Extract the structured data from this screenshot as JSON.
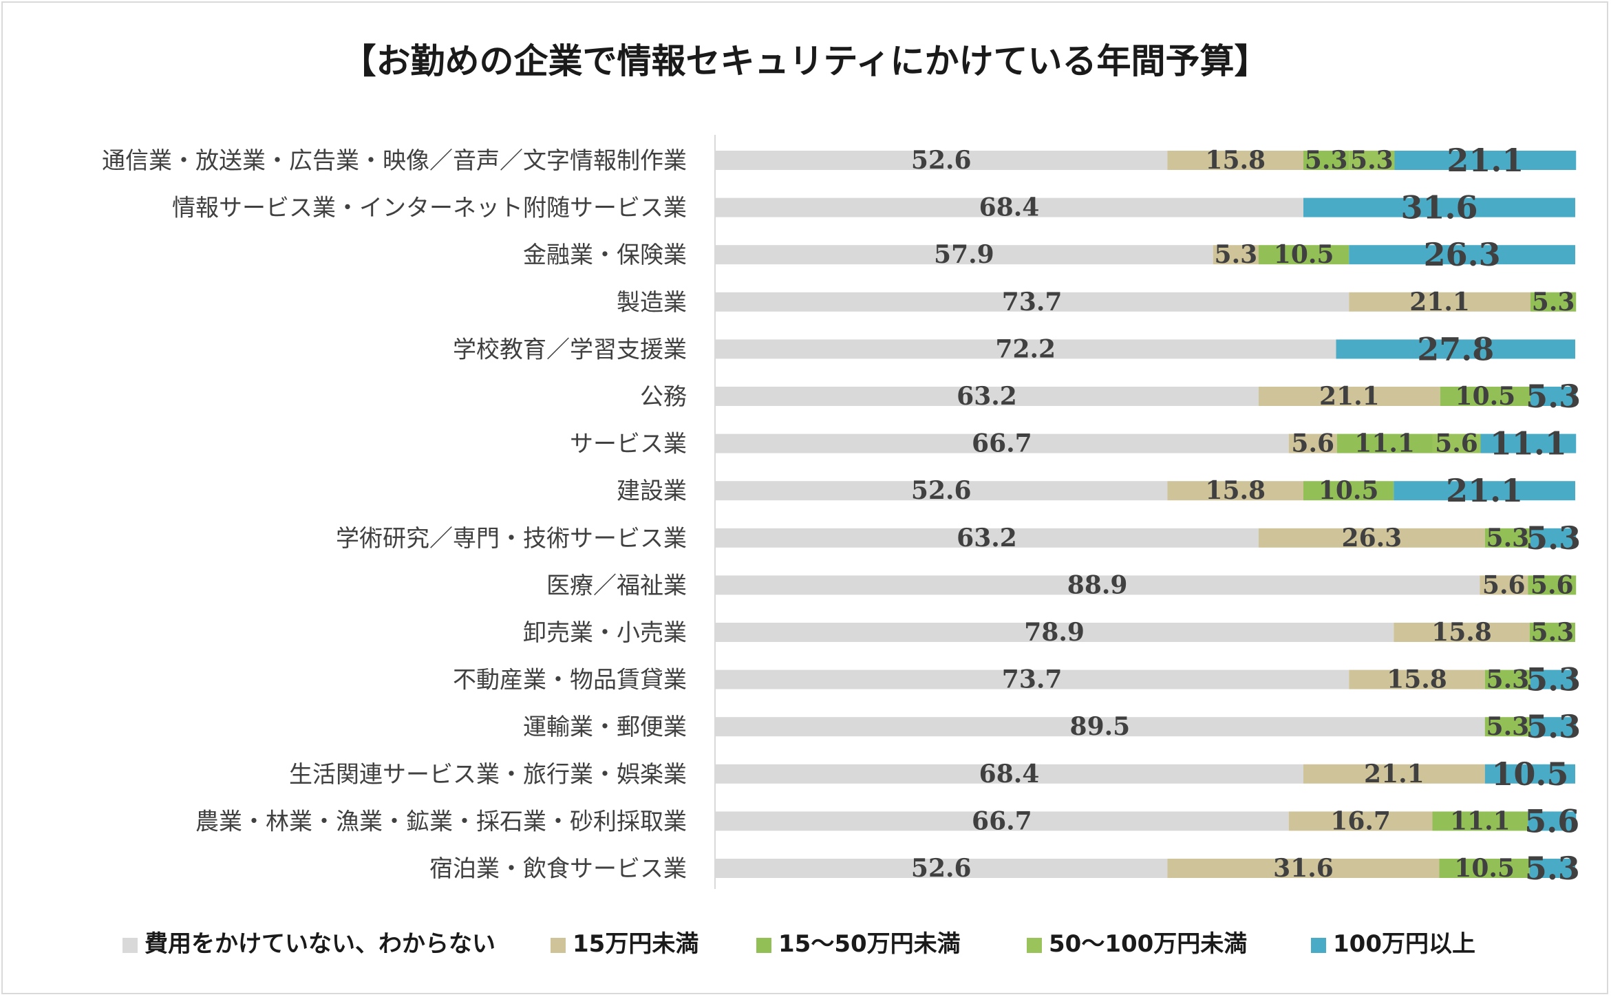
{
  "chart_data": {
    "type": "bar",
    "orientation": "horizontal",
    "stacked": "percent",
    "title": "【お勤めの企業で情報セキュリティにかけている年間予算】",
    "categories": [
      "通信業・放送業・広告業・映像／音声／文字情報制作業",
      "情報サービス業・インターネット附随サービス業",
      "金融業・保険業",
      "製造業",
      "学校教育／学習支援業",
      "公務",
      "サービス業",
      "建設業",
      "学術研究／専門・技術サービス業",
      "医療／福祉業",
      "卸売業・小売業",
      "不動産業・物品賃貸業",
      "運輸業・郵便業",
      "生活関連サービス業・旅行業・娯楽業",
      "農業・林業・漁業・鉱業・採石業・砂利採取業",
      "宿泊業・飲食サービス業"
    ],
    "series": [
      {
        "name": "費用をかけていない、わからない",
        "color": "#d9d9d9",
        "values": [
          52.6,
          68.4,
          57.9,
          73.7,
          72.2,
          63.2,
          66.7,
          52.6,
          63.2,
          88.9,
          78.9,
          73.7,
          89.5,
          68.4,
          66.7,
          52.6
        ]
      },
      {
        "name": "15万円未満",
        "color": "#cfc39a",
        "values": [
          15.8,
          0,
          5.3,
          21.1,
          0,
          21.1,
          5.6,
          15.8,
          26.3,
          5.6,
          15.8,
          15.8,
          0,
          21.1,
          16.7,
          31.6
        ]
      },
      {
        "name": "15～50万円未満",
        "color": "#92c056",
        "values": [
          5.3,
          0,
          10.5,
          5.3,
          0,
          10.5,
          11.1,
          10.5,
          5.3,
          5.6,
          5.3,
          5.3,
          5.3,
          0,
          11.1,
          10.5
        ]
      },
      {
        "name": "50～100万円未満",
        "color": "#9ac35c",
        "values": [
          5.3,
          0,
          0,
          0,
          0,
          0,
          5.6,
          0,
          0,
          0,
          0,
          0,
          0,
          0,
          0,
          0
        ]
      },
      {
        "name": "100万円以上",
        "color": "#4aabc6",
        "values": [
          21.1,
          31.6,
          26.3,
          0,
          27.8,
          5.3,
          11.1,
          21.1,
          5.3,
          0,
          0,
          5.3,
          5.3,
          10.5,
          5.6,
          5.3
        ]
      }
    ],
    "xlim": [
      0,
      100
    ],
    "legend": "bottom",
    "grid": false
  }
}
